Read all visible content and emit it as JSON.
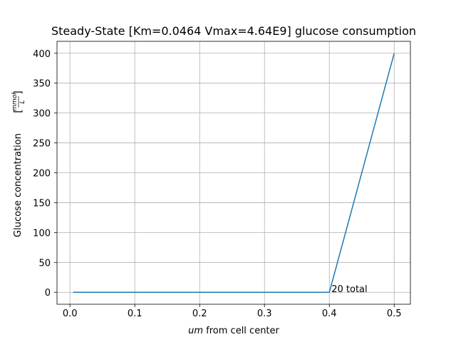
{
  "chart_data": {
    "type": "line",
    "title": "Steady-State [Km=0.0464 Vmax=4.64E9] glucose consumption",
    "xlabel_prefix": "um",
    "xlabel_rest": " from cell center",
    "ylabel": "Glucose concentration",
    "ylabel_units_numerator": "mmol",
    "ylabel_units_denominator": "L",
    "xlim": [
      -0.02,
      0.525
    ],
    "ylim": [
      -20,
      420
    ],
    "xticks": [
      0.0,
      0.1,
      0.2,
      0.3,
      0.4,
      0.5
    ],
    "xtick_labels": [
      "0.0",
      "0.1",
      "0.2",
      "0.3",
      "0.4",
      "0.5"
    ],
    "yticks": [
      0,
      50,
      100,
      150,
      200,
      250,
      300,
      350,
      400
    ],
    "ytick_labels": [
      "0",
      "50",
      "100",
      "150",
      "200",
      "250",
      "300",
      "350",
      "400"
    ],
    "grid": true,
    "series": [
      {
        "name": "glucose",
        "color": "#1f77b4",
        "x": [
          0.005,
          0.1,
          0.2,
          0.3,
          0.395,
          0.4,
          0.5
        ],
        "y": [
          0,
          0,
          0,
          0,
          0,
          0,
          400
        ]
      }
    ],
    "annotations": [
      {
        "text": "20 total",
        "x": 0.4,
        "y": 0
      }
    ]
  }
}
